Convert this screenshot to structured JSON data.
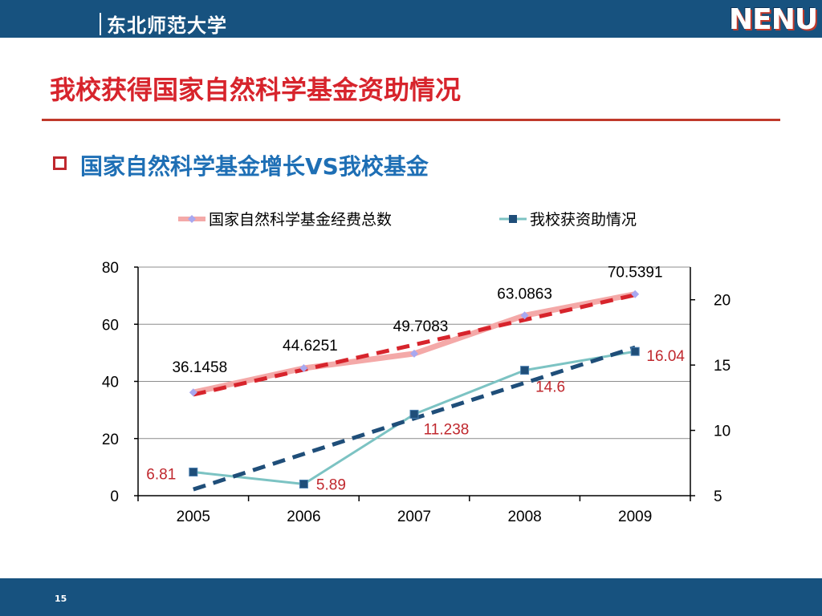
{
  "header": {
    "brand": "东北师范大学",
    "logo": "NENU",
    "bar_color": "#17527f"
  },
  "slide": {
    "title": "我校获得国家自然科学基金资助情况",
    "subtitle": "国家自然科学基金增长VS我校基金",
    "page_number": "15",
    "title_color": "#d7242c",
    "subtitle_color": "#1e6fb5"
  },
  "chart_data": {
    "type": "line",
    "title": "",
    "categories": [
      "2005",
      "2006",
      "2007",
      "2008",
      "2009"
    ],
    "legend_position": "top",
    "grid": true,
    "y_left": {
      "ticks": [
        "0",
        "20",
        "40",
        "60",
        "80"
      ],
      "range": [
        0,
        80
      ]
    },
    "y_right": {
      "ticks": [
        "5",
        "10",
        "15",
        "20"
      ],
      "range": [
        5,
        22.5
      ]
    },
    "series": [
      {
        "name": "国家自然科学基金经费总数",
        "axis": "left",
        "values": [
          36.1458,
          44.6251,
          49.7083,
          63.0863,
          70.5391
        ],
        "labels": [
          "36.1458",
          "44.6251",
          "49.7083",
          "63.0863",
          "70.5391"
        ],
        "color": "#f4a9a8",
        "marker_color": "#a8a8f0",
        "trendline_color": "#d7242c"
      },
      {
        "name": "我校获资助情况",
        "axis": "right",
        "values": [
          6.81,
          5.89,
          11.238,
          14.6,
          16.04
        ],
        "labels": [
          "6.81",
          "5.89",
          "11.238",
          "14.6",
          "16.04"
        ],
        "color": "#7cc3c3",
        "marker_color": "#1f4e79",
        "trendline_color": "#1f4e79",
        "label_color": "#c0282e"
      }
    ]
  }
}
